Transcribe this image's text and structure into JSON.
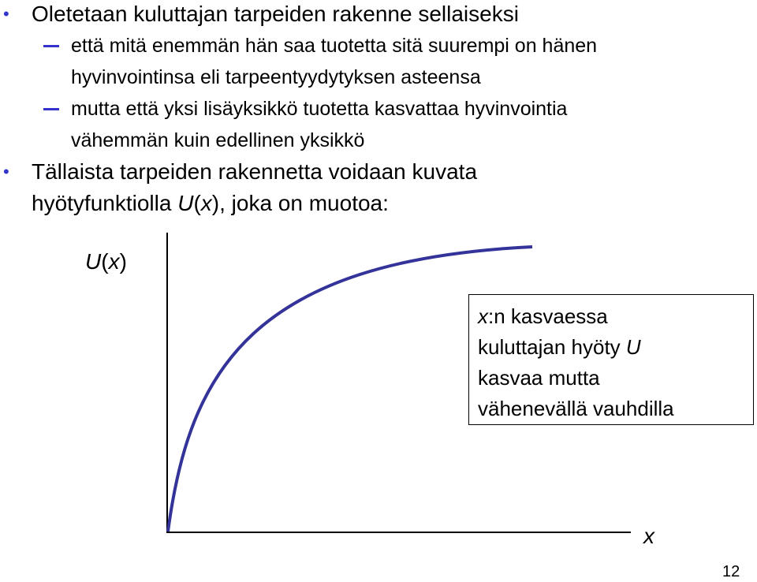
{
  "items": [
    {
      "level": 1,
      "lines": [
        [
          {
            "text": "Oletetaan kuluttajan tarpeiden rakenne sellaiseksi"
          }
        ]
      ]
    },
    {
      "level": 2,
      "lines": [
        [
          {
            "text": "että mitä enemmän hän saa tuotetta sitä suurempi on hänen"
          }
        ],
        [
          {
            "text": "hyvinvointinsa eli tarpeentyydytyksen asteensa"
          }
        ]
      ]
    },
    {
      "level": 2,
      "lines": [
        [
          {
            "text": "mutta että yksi lisäyksikkö tuotetta kasvattaa hyvinvointia"
          }
        ],
        [
          {
            "text": "vähemmän kuin edellinen yksikkö"
          }
        ]
      ]
    },
    {
      "level": 1,
      "lines": [
        [
          {
            "text": "Tällaista tarpeiden rakennetta voidaan kuvata"
          }
        ],
        [
          {
            "text": "hyötyfunktiolla "
          },
          {
            "text": "U",
            "italic": true
          },
          {
            "text": "("
          },
          {
            "text": "x",
            "italic": true
          },
          {
            "text": "), joka on muotoa:"
          }
        ]
      ]
    }
  ],
  "figure": {
    "y_label": [
      {
        "text": "U",
        "italic": true
      },
      {
        "text": "("
      },
      {
        "text": "x",
        "italic": true
      },
      {
        "text": ")"
      }
    ],
    "x_label": [
      {
        "text": "x",
        "italic": true
      }
    ],
    "note": [
      [
        {
          "text": "x",
          "italic": true
        },
        {
          "text": ":n kasvaessa"
        }
      ],
      [
        {
          "text": "kuluttajan hyöty "
        },
        {
          "text": "U",
          "italic": true
        }
      ],
      [
        {
          "text": "kasvaa mutta"
        }
      ],
      [
        {
          "text": "vähenevällä vauhdilla"
        }
      ]
    ]
  },
  "page_number": "12"
}
